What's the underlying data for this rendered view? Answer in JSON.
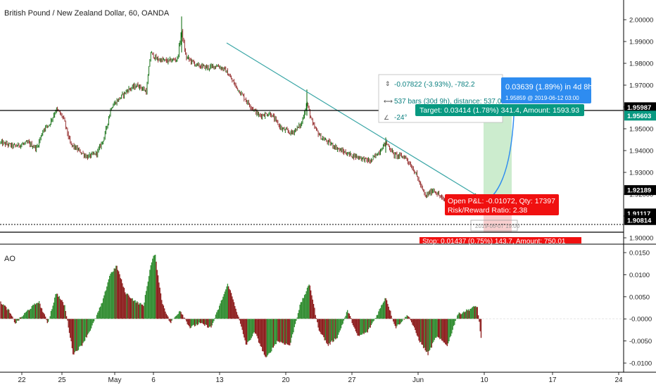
{
  "header": {
    "title": "British Pound / New Zealand Dollar, 60, OANDA"
  },
  "price_axis": {
    "ticks": [
      "2.00000",
      "1.99000",
      "1.98000",
      "1.97000",
      "1.96000",
      "1.95000",
      "1.94000",
      "1.93000",
      "1.92000",
      "1.91000",
      "1.90000"
    ],
    "badges": [
      {
        "text": "1.95987",
        "value": 1.95987,
        "bg": "#000000",
        "fg": "#ffffff"
      },
      {
        "text": "1.95603",
        "value": 1.95603,
        "bg": "#089981",
        "fg": "#ffffff"
      },
      {
        "text": "1.92189",
        "value": 1.92189,
        "bg": "#000000",
        "fg": "#ffffff"
      },
      {
        "text": "1.91117",
        "value": 1.91117,
        "bg": "#000000",
        "fg": "#ffffff"
      },
      {
        "text": "1.90814",
        "value": 1.90814,
        "bg": "#000000",
        "fg": "#ffffff"
      }
    ]
  },
  "indicator": {
    "name": "AO",
    "ticks": [
      "0.0150",
      "0.0100",
      "0.0050",
      "-0.0000",
      "-0.0050",
      "-0.0100"
    ]
  },
  "time_axis": {
    "labels": [
      "22",
      "25",
      "May",
      "6",
      "13",
      "20",
      "27",
      "Jun",
      "10",
      "17",
      "24"
    ]
  },
  "measure_tool": {
    "line1": "-0.07822 (-3.93%), -782.2",
    "line2": "537 bars (30d 9h), distance: 537.0000",
    "line3": "-24°"
  },
  "projection": {
    "main": "0.03639 (1.89%) in 4d 8h",
    "sub": "1.95859 @ 2019-06-12 03:00"
  },
  "position": {
    "target": "Target: 0.03414 (1.78%) 341.4, Amount: 1593.93",
    "open_pl": "Open P&L: -0.01072, Qty: 17397",
    "risk_reward": "Risk/Reward Ratio: 2.38",
    "stop": "Stop: 0.01437 (0.75%) 143.7, Amount: 750.01",
    "date_stub": "2019-06-07 19:00"
  },
  "colors": {
    "up": "#006400",
    "down": "#8b1a1a",
    "ao_green": "#2e8b2e",
    "ao_red": "#8b1a1a",
    "trendline": "#3aa6a6",
    "target_bg": "#089981",
    "stop_bg": "#f01010",
    "projection_bg": "#2e8cf0"
  }
}
